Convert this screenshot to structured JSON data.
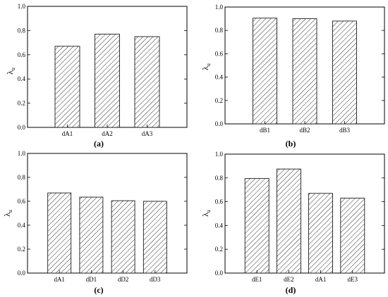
{
  "chart_data": [
    {
      "type": "bar",
      "panel_label": "(a)",
      "ylabel": "λ",
      "ylabel_sub": "u",
      "ylim": [
        0,
        1.0
      ],
      "yticks": [
        "0.0",
        "0.2",
        "0.4",
        "0.6",
        "0.8",
        "1.0"
      ],
      "categories": [
        "dA1",
        "dA2",
        "dA3"
      ],
      "values": [
        0.67,
        0.77,
        0.75
      ],
      "bar_fill": "hatched"
    },
    {
      "type": "bar",
      "panel_label": "(b)",
      "ylabel": "λ",
      "ylabel_sub": "u",
      "ylim": [
        0,
        1.0
      ],
      "yticks": [
        "0.0",
        "0.2",
        "0.4",
        "0.6",
        "0.8",
        "1.0"
      ],
      "categories": [
        "dB1",
        "dB2",
        "dB3"
      ],
      "values": [
        0.905,
        0.9,
        0.88
      ],
      "bar_fill": "hatched"
    },
    {
      "type": "bar",
      "panel_label": "(c)",
      "ylabel": "λ",
      "ylabel_sub": "u",
      "ylim": [
        0,
        1.0
      ],
      "yticks": [
        "0.0",
        "0.2",
        "0.4",
        "0.6",
        "0.8",
        "1.0"
      ],
      "categories": [
        "dA1",
        "dD1",
        "dD2",
        "dD3"
      ],
      "values": [
        0.67,
        0.635,
        0.605,
        0.6
      ],
      "bar_fill": "hatched"
    },
    {
      "type": "bar",
      "panel_label": "(d)",
      "ylabel": "λ",
      "ylabel_sub": "u",
      "ylim": [
        0,
        1.0
      ],
      "yticks": [
        "0.0",
        "0.2",
        "0.4",
        "0.6",
        "0.8",
        "1.0"
      ],
      "categories": [
        "dE1",
        "dE2",
        "dA1",
        "dE3"
      ],
      "values": [
        0.795,
        0.875,
        0.67,
        0.63
      ],
      "bar_fill": "hatched"
    }
  ],
  "colors": {
    "axis": "#000000",
    "bar_stroke": "#000000",
    "hatch": "#000000",
    "background": "#ffffff"
  }
}
